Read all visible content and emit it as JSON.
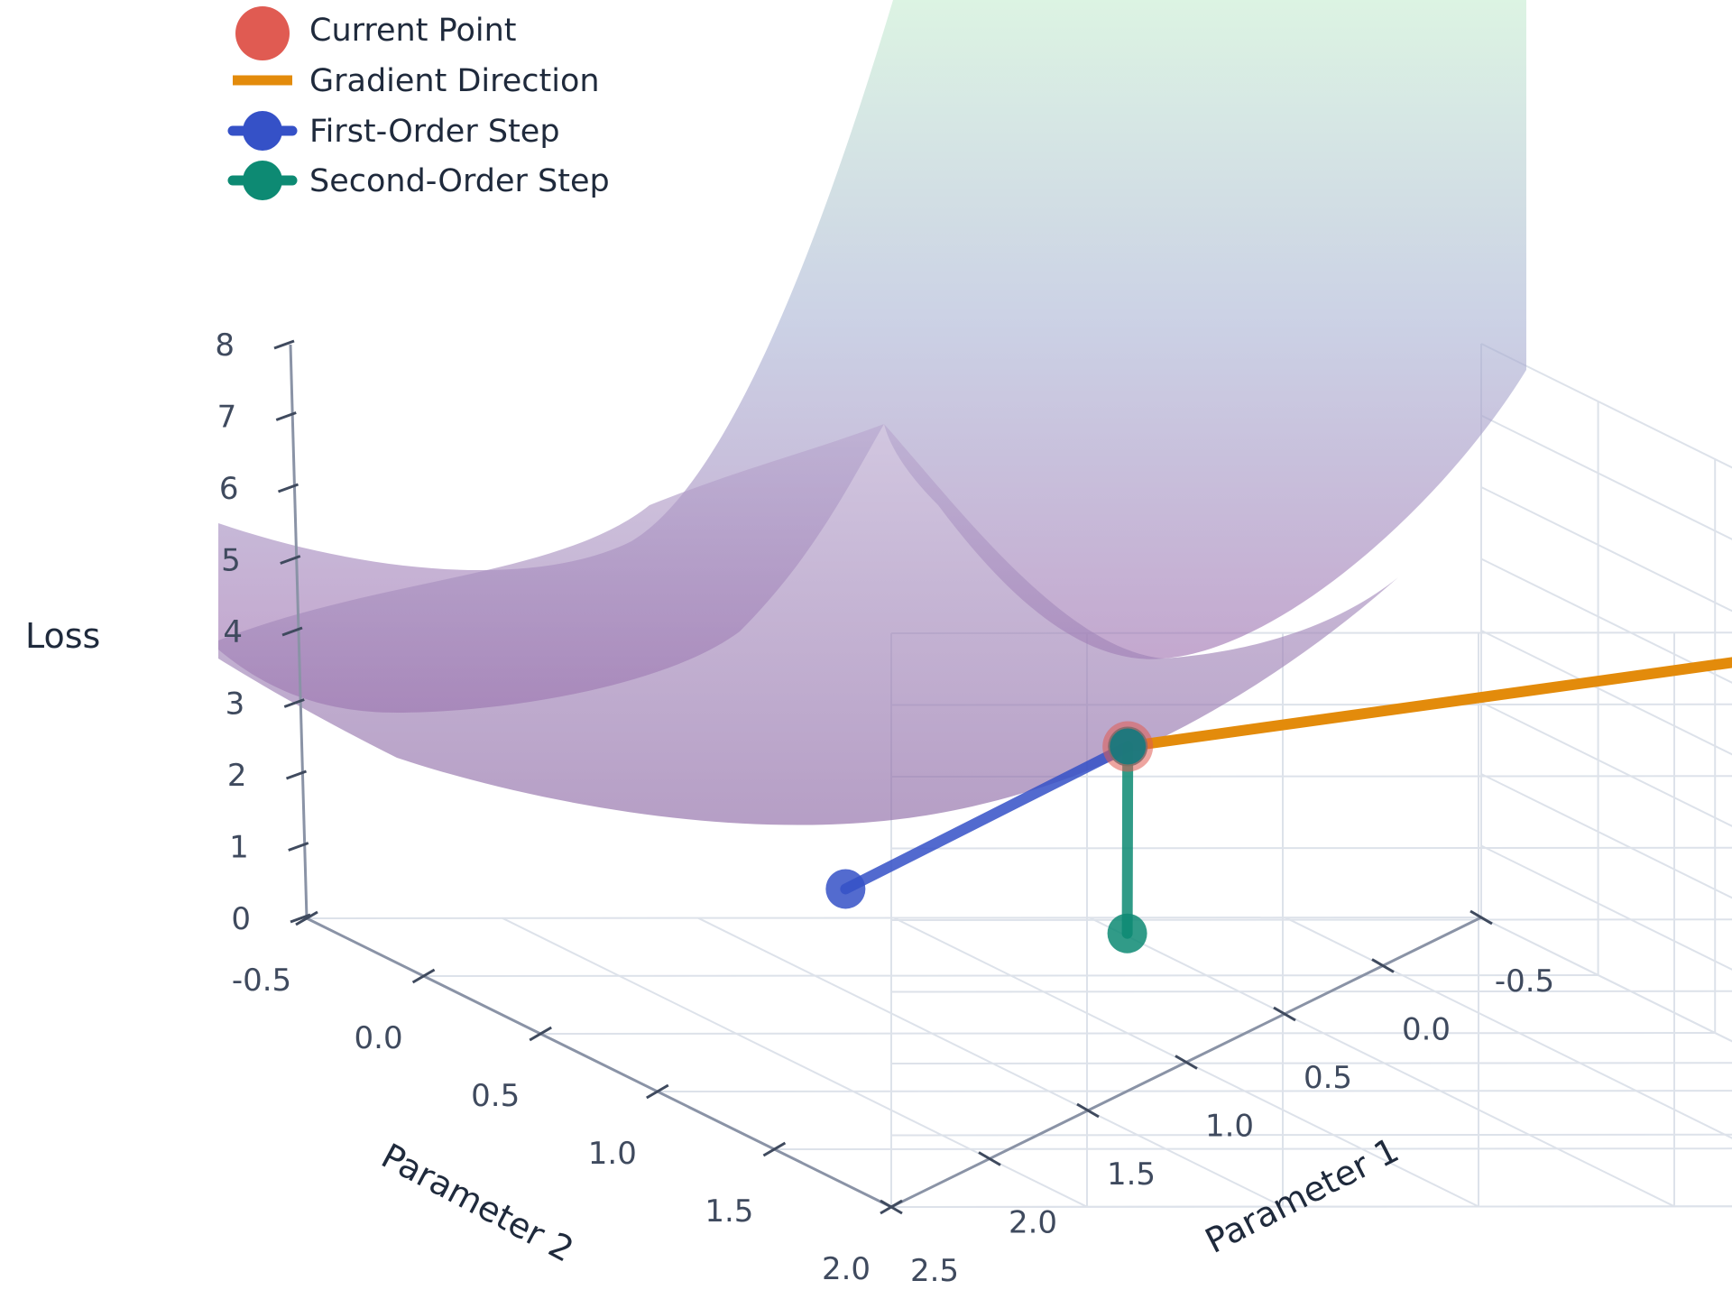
{
  "chart_data": {
    "type": "surface3d",
    "title": "",
    "axes": {
      "x": {
        "label": "Parameter 1",
        "range": [
          -0.5,
          2.5
        ],
        "ticks": [
          "-0.5",
          "0.0",
          "0.5",
          "1.0",
          "1.5",
          "2.0",
          "2.5"
        ]
      },
      "y": {
        "label": "Parameter 2",
        "range": [
          -0.5,
          2.0
        ],
        "ticks": [
          "-0.5",
          "0.0",
          "0.5",
          "1.0",
          "1.5",
          "2.0"
        ]
      },
      "z": {
        "label": "Loss",
        "range": [
          0,
          8
        ],
        "ticks": [
          "0",
          "1",
          "2",
          "3",
          "4",
          "5",
          "6",
          "7",
          "8"
        ]
      }
    },
    "grid": true,
    "legend_position": "top-left",
    "legend": [
      {
        "label": "Current Point",
        "symbol": "marker",
        "color": "#e05b52"
      },
      {
        "label": "Gradient Direction",
        "symbol": "line",
        "color": "#e38b0b"
      },
      {
        "label": "First-Order Step",
        "symbol": "line-marker",
        "color": "#3551c7"
      },
      {
        "label": "Second-Order Step",
        "symbol": "line-marker",
        "color": "#0d8a73"
      }
    ],
    "surface": {
      "colorscale_low": "#9a62a8",
      "colorscale_high": "#c5ecd0",
      "opacity": 0.55
    },
    "series": [
      {
        "name": "Current Point",
        "x": [
          1.0
        ],
        "y": [
          0.5
        ],
        "z": [
          4.0
        ]
      },
      {
        "name": "Gradient Direction",
        "x": [
          1.0,
          -0.2
        ],
        "y": [
          0.5,
          2.0
        ],
        "z": [
          4.0,
          8.0
        ]
      },
      {
        "name": "First-Order Step",
        "x": [
          1.0,
          1.9
        ],
        "y": [
          0.5,
          0.8
        ],
        "z": [
          4.0,
          2.5
        ]
      },
      {
        "name": "Second-Order Step",
        "x": [
          1.0,
          1.3
        ],
        "y": [
          0.5,
          1.0
        ],
        "z": [
          4.0,
          2.2
        ]
      }
    ]
  }
}
